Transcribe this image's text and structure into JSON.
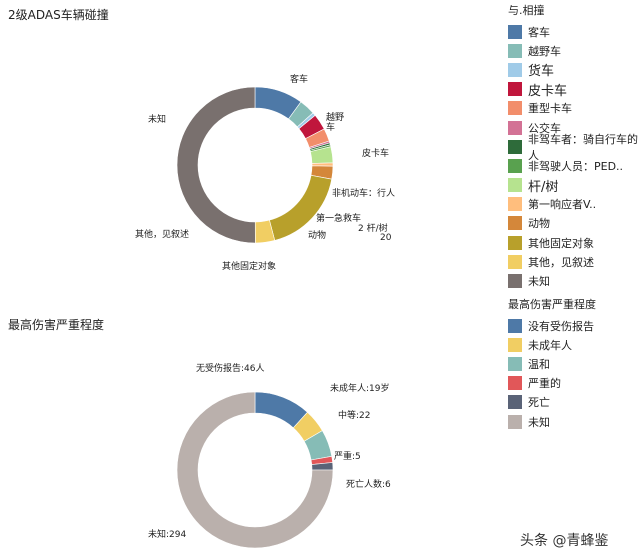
{
  "chart_data": [
    {
      "type": "pie",
      "title": "2级ADAS车辆碰撞",
      "legend_title": "与.相撞",
      "legend_position": "right",
      "slices": [
        {
          "name": "客车",
          "value": 15,
          "color": "#4e79a7",
          "label": "客车"
        },
        {
          "name": "越野车",
          "value": 5,
          "color": "#86bcb6",
          "label": "越野\n车"
        },
        {
          "name": "货车",
          "value": 1,
          "color": "#a0cbe8",
          "label": ""
        },
        {
          "name": "皮卡车",
          "value": 5,
          "color": "#c0163c",
          "label": "皮卡车"
        },
        {
          "name": "重型卡车",
          "value": 4,
          "color": "#f28e6b",
          "label": ""
        },
        {
          "name": "公交车",
          "value": 0.6,
          "color": "#d37295",
          "label": ""
        },
        {
          "name": "非驾车者：骑自行车的人",
          "value": 0.6,
          "color": "#2e6b3a",
          "label": ""
        },
        {
          "name": "非驾驶人员：PED..",
          "value": 0.6,
          "color": "#59a14f",
          "label": ""
        },
        {
          "name": "杆/树",
          "value": 5,
          "color": "#b6e38f",
          "label": "非机动车：行人"
        },
        {
          "name": "第一响应者V..",
          "value": 1,
          "color": "#ffbe7d",
          "label": ""
        },
        {
          "name": "动物",
          "value": 4,
          "color": "#d4873a",
          "label": "第一急救车"
        },
        {
          "name": "其他固定对象",
          "value": 27,
          "color": "#b8a02b",
          "label": "其他固定对象"
        },
        {
          "name": "其他，见叙述",
          "value": 6,
          "color": "#f1ce63",
          "label": "其他，见叙述"
        },
        {
          "name": "未知",
          "value": 75,
          "color": "#79706e",
          "label": "未知"
        }
      ],
      "extra_labels": [
        "动物",
        "2 杆/树",
        "20"
      ]
    },
    {
      "type": "pie",
      "title": "最高伤害严重程度",
      "legend_title": "最高伤害严重程度",
      "legend_position": "right",
      "slices": [
        {
          "name": "没有受伤报告",
          "value": 46,
          "color": "#4e79a7",
          "label": "无受伤报告:46人"
        },
        {
          "name": "未成年人",
          "value": 19,
          "color": "#f1ce63",
          "label": "未成年人:19岁"
        },
        {
          "name": "温和",
          "value": 22,
          "color": "#86bcb6",
          "label": "中等:22"
        },
        {
          "name": "严重的",
          "value": 5,
          "color": "#e15759",
          "label": "严重:5"
        },
        {
          "name": "死亡",
          "value": 6,
          "color": "#5a6377",
          "label": "死亡人数:6"
        },
        {
          "name": "未知",
          "value": 294,
          "color": "#bab0ac",
          "label": "未知:294"
        }
      ]
    }
  ],
  "legend1_large": [
    false,
    false,
    true,
    true,
    false,
    false,
    false,
    false,
    true,
    false,
    false,
    false,
    false,
    false
  ],
  "watermark": "头条 @青蜂鉴"
}
